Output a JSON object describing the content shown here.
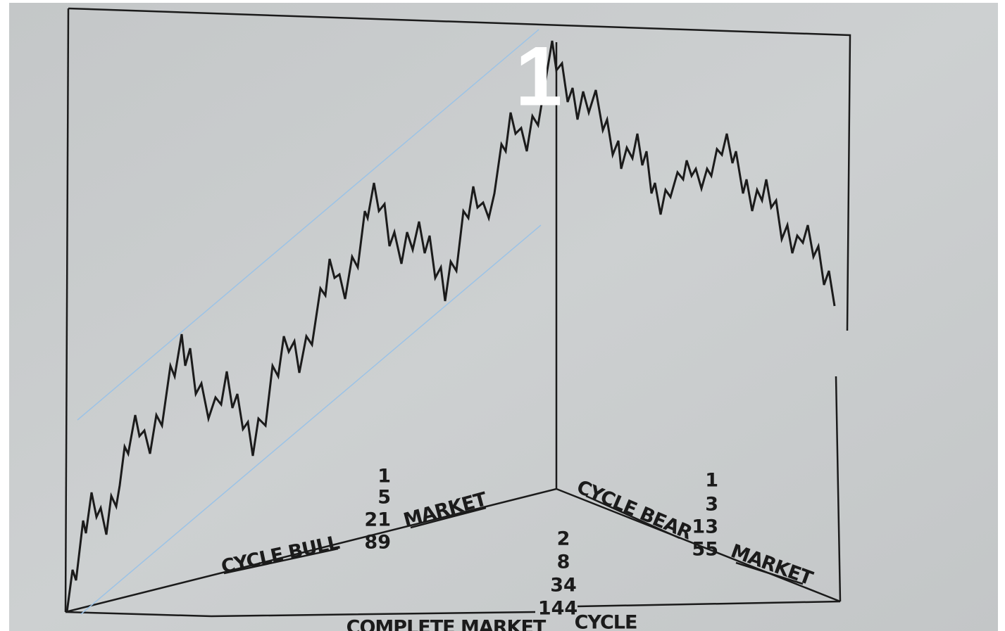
{
  "overlay_label": "1",
  "bull": {
    "label": "CYCLE BULL",
    "market": "MARKET",
    "counts": [
      1,
      5,
      21,
      89
    ]
  },
  "bear": {
    "label": "CYCLE BEAR",
    "market": "MARKET",
    "counts": [
      1,
      3,
      13,
      55
    ]
  },
  "complete": {
    "label": "COMPLETE MARKET",
    "cycle": "CYCLE",
    "counts": [
      2,
      8,
      34,
      144
    ]
  }
}
